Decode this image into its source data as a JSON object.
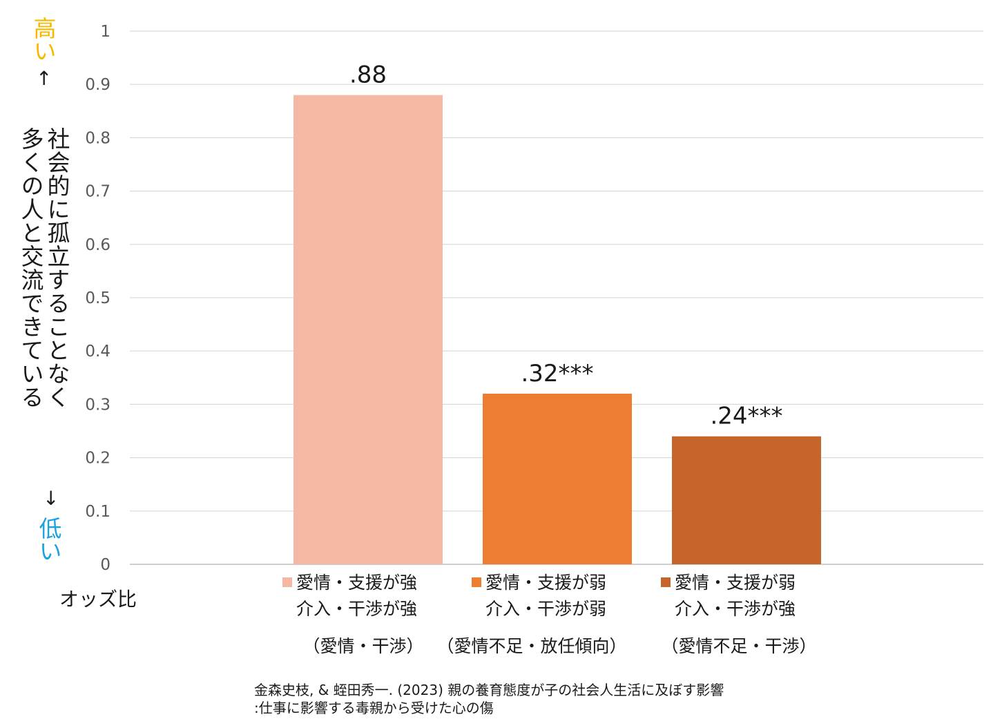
{
  "colors": {
    "grid": "#d9d9d9",
    "axis": "#bfbfbf",
    "high": "#f5b800",
    "low": "#1aa3e0"
  },
  "y_axis": {
    "high_label": "高い",
    "high_arrow": "↑",
    "title_line1": "社会的に孤立することなく",
    "title_line2": "多くの人と交流できている",
    "low_arrow": "↓",
    "low_label": "低い"
  },
  "odds_label": "オッズ比",
  "chart_data": {
    "type": "bar",
    "ylim": [
      0,
      1
    ],
    "grid": true,
    "yticks": [
      "0",
      "0.1",
      "0.2",
      "0.3",
      "0.4",
      "0.5",
      "0.6",
      "0.7",
      "0.8",
      "0.9",
      "1"
    ],
    "bars": [
      {
        "value": 0.88,
        "data_label": ".88",
        "color": "#f4b8a5",
        "legend_line1": "愛情・支援が強",
        "legend_line2": "介入・干渉が強"
      },
      {
        "value": 0.32,
        "data_label": ".32***",
        "color": "#ed7d31",
        "legend_line1": "愛情・支援が弱",
        "legend_line2": "介入・干渉が弱"
      },
      {
        "value": 0.24,
        "data_label": ".24***",
        "color": "#c5652a",
        "legend_line1": "愛情・支援が弱",
        "legend_line2": "介入・干渉が強"
      }
    ],
    "group_labels": [
      "（愛情・干渉）",
      "（愛情不足・放任傾向）",
      "（愛情不足・干渉）"
    ]
  },
  "source": {
    "line1": "金森史枝, & 蛭田秀一. (2023) 親の養育態度が子の社会人生活に及ぼす影響",
    "line2": ":仕事に影響する毒親から受けた心の傷"
  }
}
